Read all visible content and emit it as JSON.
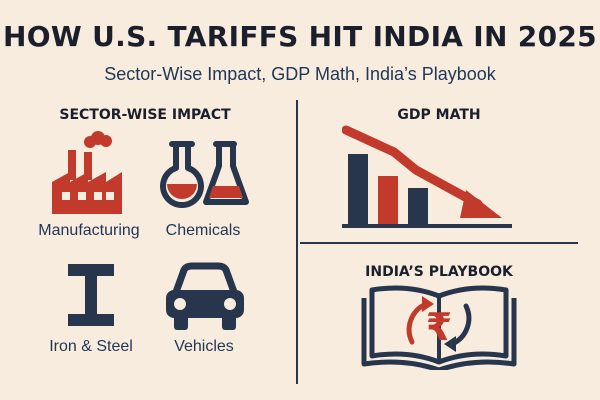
{
  "header": {
    "title": "HOW U.S. TARIFFS HIT INDIA IN 2025",
    "subtitle": "Sector-Wise Impact, GDP Math, India’s Playbook"
  },
  "sector_impact": {
    "heading": "SECTOR-WISE IMPACT",
    "items": [
      {
        "label": "Manufacturing",
        "icon": "factory-icon"
      },
      {
        "label": "Chemicals",
        "icon": "lab-flasks-icon"
      },
      {
        "label": "Iron & Steel",
        "icon": "steel-beam-icon"
      },
      {
        "label": "Vehicles",
        "icon": "car-icon"
      }
    ]
  },
  "gdp_math": {
    "heading": "GDP MATH",
    "icon": "declining-bar-chart-icon"
  },
  "playbook": {
    "heading": "INDIA’S PLAYBOOK",
    "icon": "rupee-book-icon"
  },
  "colors": {
    "background": "#f8ecdf",
    "navy": "#27364d",
    "red": "#c23a2b"
  }
}
